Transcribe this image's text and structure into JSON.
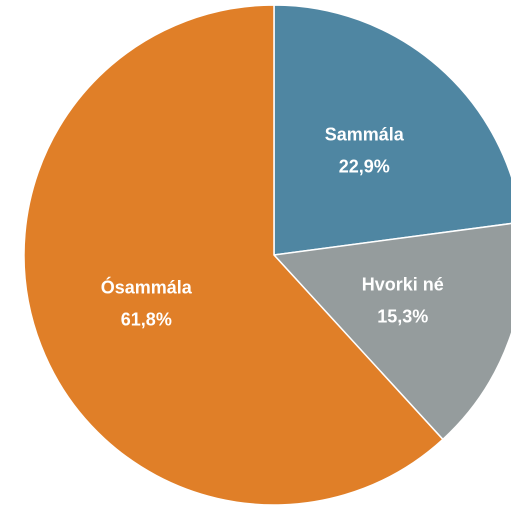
{
  "chart_data": {
    "type": "pie",
    "categories": [
      "Sammála",
      "Hvorki né",
      "Ósammála"
    ],
    "values": [
      22.9,
      15.3,
      61.8
    ],
    "value_labels": [
      "22,9%",
      "15,3%",
      "61,8%"
    ],
    "colors": [
      "#4f86a2",
      "#959c9d",
      "#e07f28"
    ]
  }
}
